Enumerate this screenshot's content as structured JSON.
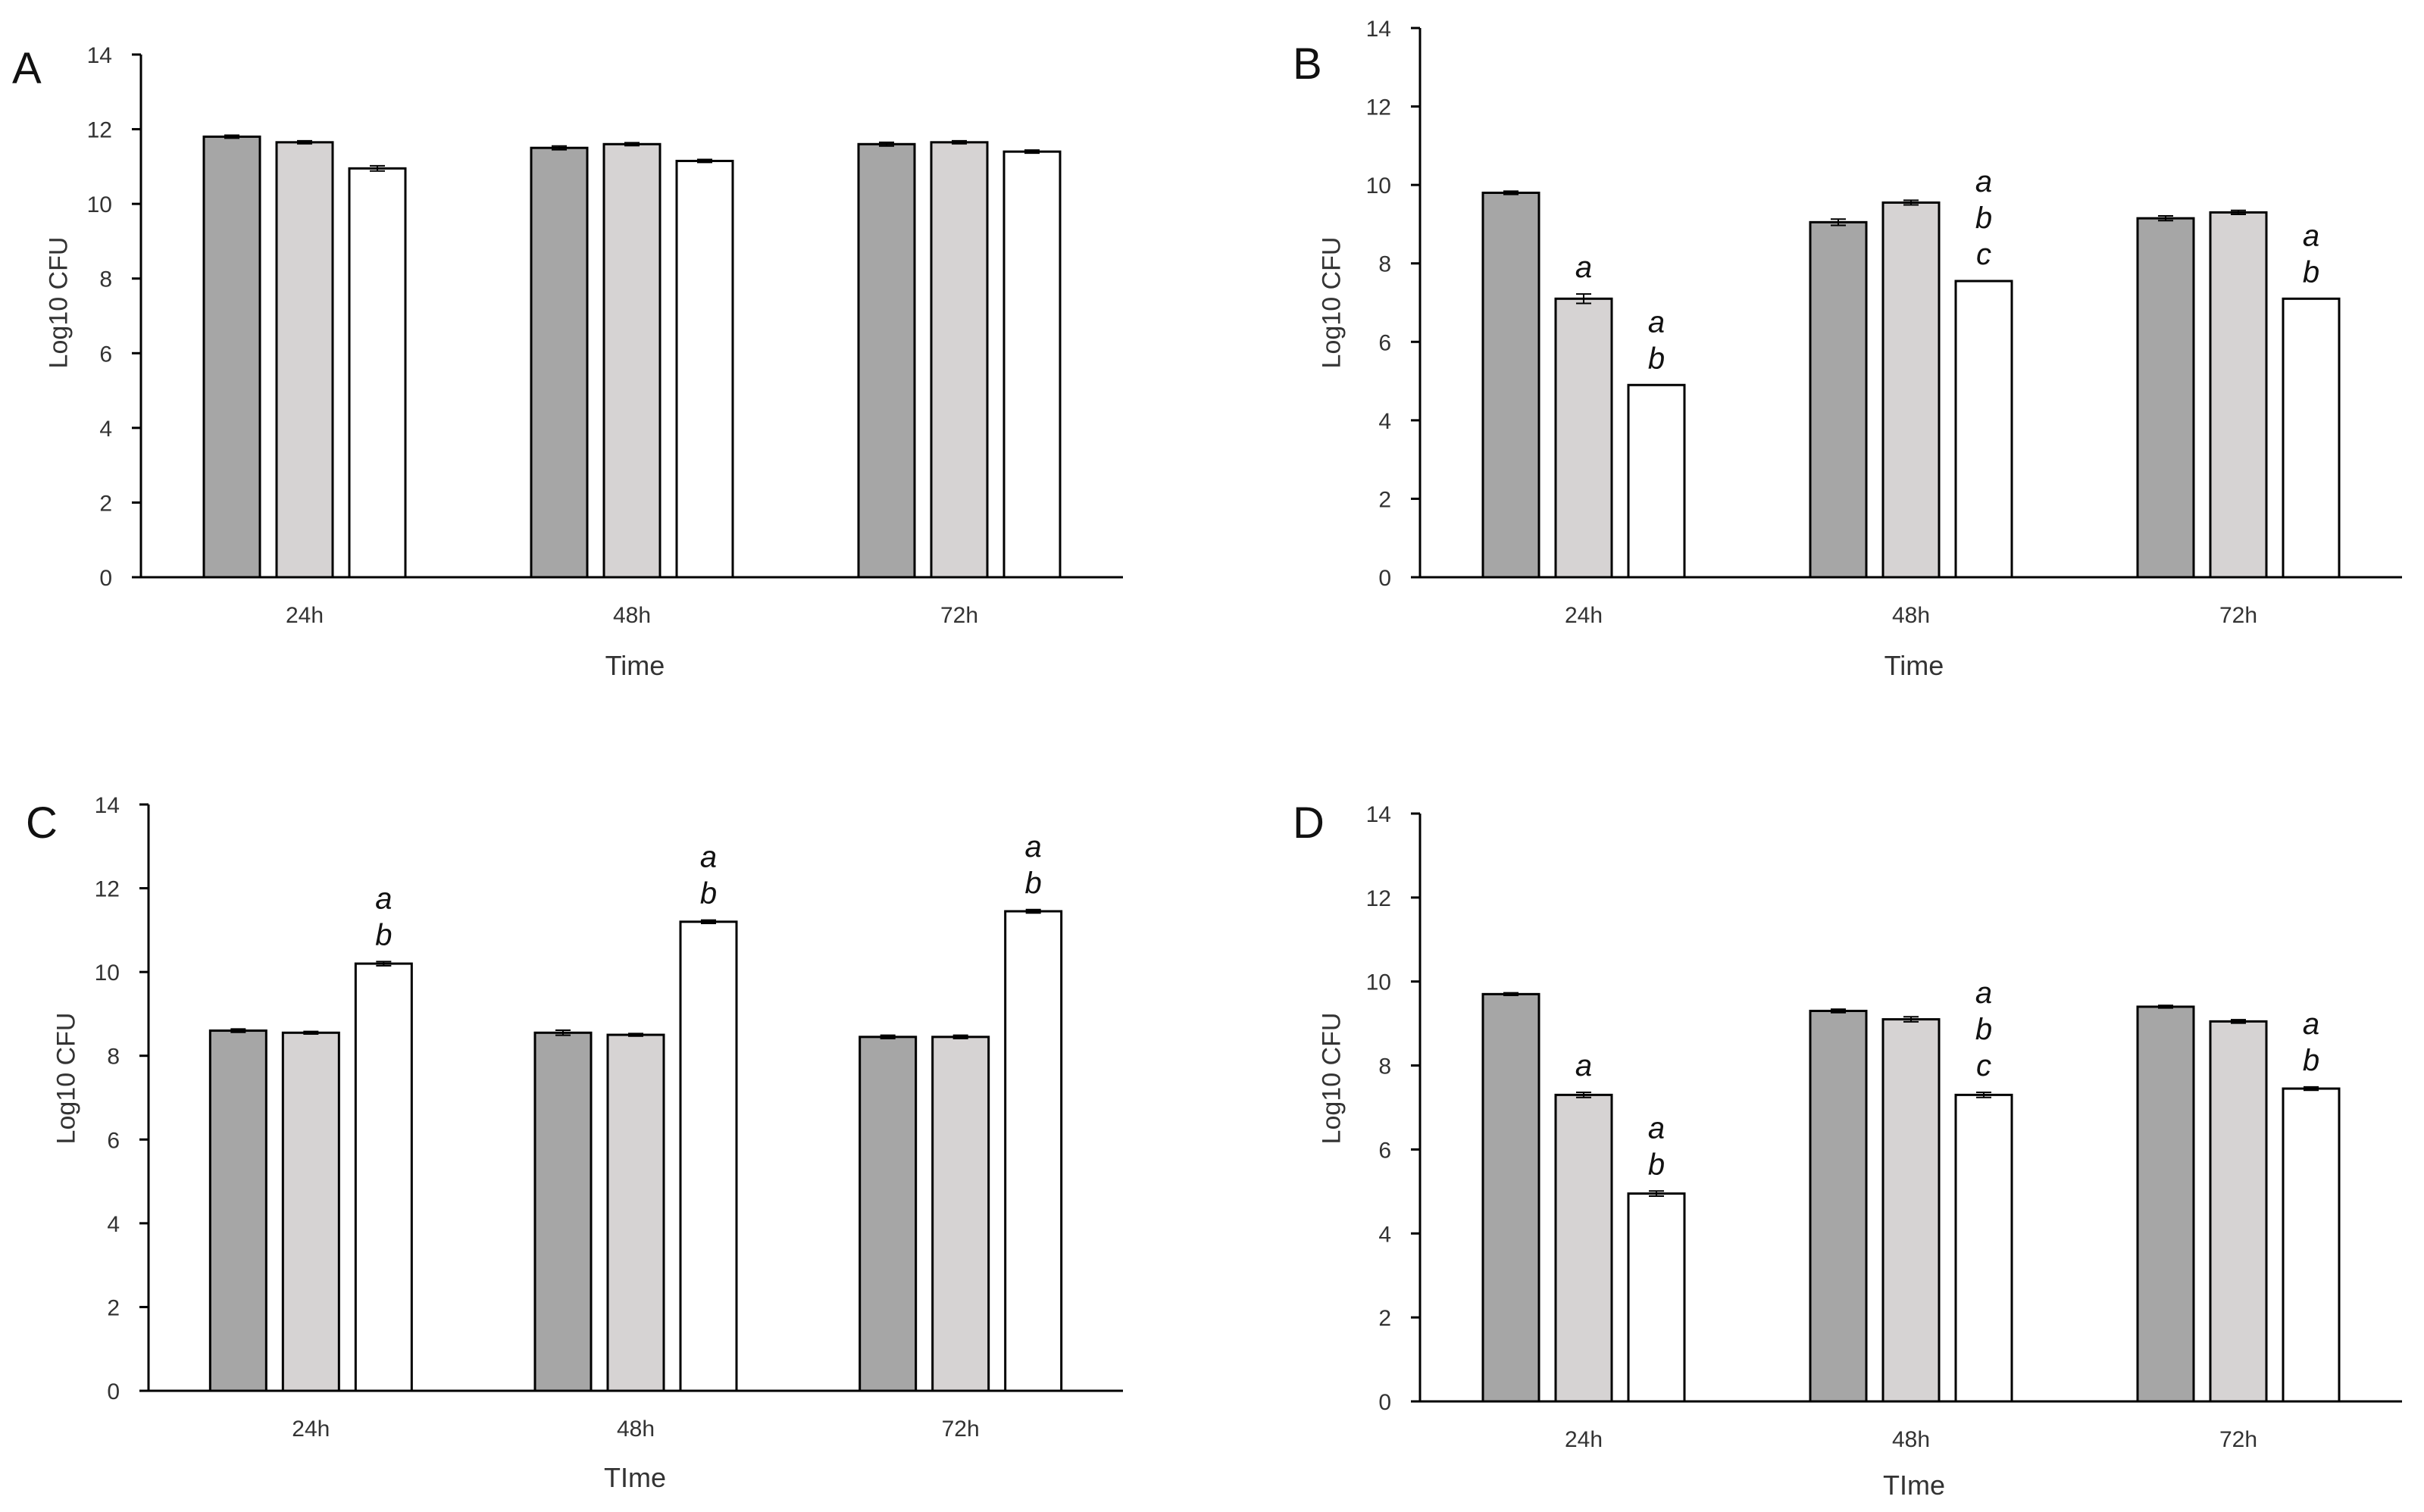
{
  "colors": {
    "series1": "#a6a6a6",
    "series2": "#d6d3d3",
    "series3": "#ffffff",
    "stroke": "#000000",
    "text": "#333333"
  },
  "chart_data": [
    {
      "panel": "A",
      "type": "bar",
      "categories": [
        "24h",
        "48h",
        "72h"
      ],
      "series": [
        {
          "name": "series1",
          "values": [
            11.8,
            11.5,
            11.6
          ],
          "errors": [
            0.04,
            0.05,
            0.05
          ]
        },
        {
          "name": "series2",
          "values": [
            11.65,
            11.6,
            11.65
          ],
          "errors": [
            0.04,
            0.04,
            0.04
          ]
        },
        {
          "name": "series3",
          "values": [
            10.95,
            11.15,
            11.4
          ],
          "errors": [
            0.07,
            0.04,
            0.04
          ]
        }
      ],
      "annotations": [
        [
          [],
          [],
          []
        ],
        [
          [],
          [],
          []
        ],
        [
          [],
          [],
          []
        ]
      ],
      "xlabel": "Time",
      "ylabel": "Log10 CFU",
      "ylim": [
        0,
        14
      ],
      "yticks": [
        "0",
        "2",
        "4",
        "6",
        "8",
        "10",
        "12",
        "14"
      ]
    },
    {
      "panel": "B",
      "type": "bar",
      "categories": [
        "24h",
        "48h",
        "72h"
      ],
      "series": [
        {
          "name": "series1",
          "values": [
            9.8,
            9.05,
            9.15
          ],
          "errors": [
            0.04,
            0.08,
            0.06
          ]
        },
        {
          "name": "series2",
          "values": [
            7.1,
            9.55,
            9.3
          ],
          "errors": [
            0.12,
            0.06,
            0.05
          ]
        },
        {
          "name": "series3",
          "values": [
            4.9,
            7.55,
            7.1
          ],
          "errors": [
            0,
            0,
            0
          ]
        }
      ],
      "annotations": [
        [
          [],
          [
            "a"
          ],
          [
            "a",
            "b"
          ]
        ],
        [
          [],
          [],
          [
            "a",
            "b",
            "c"
          ]
        ],
        [
          [],
          [],
          [
            "a",
            "b"
          ]
        ]
      ],
      "xlabel": "Time",
      "ylabel": "Log10 CFU",
      "ylim": [
        0,
        14
      ],
      "yticks": [
        "0",
        "2",
        "4",
        "6",
        "8",
        "10",
        "12",
        "14"
      ]
    },
    {
      "panel": "C",
      "type": "bar",
      "categories": [
        "24h",
        "48h",
        "72h"
      ],
      "series": [
        {
          "name": "series1",
          "values": [
            8.6,
            8.55,
            8.45
          ],
          "errors": [
            0.04,
            0.06,
            0.04
          ]
        },
        {
          "name": "series2",
          "values": [
            8.55,
            8.5,
            8.45
          ],
          "errors": [
            0.03,
            0.03,
            0.04
          ]
        },
        {
          "name": "series3",
          "values": [
            10.2,
            11.2,
            11.45
          ],
          "errors": [
            0.05,
            0.04,
            0.04
          ]
        }
      ],
      "annotations": [
        [
          [],
          [],
          [
            "a",
            "b"
          ]
        ],
        [
          [],
          [],
          [
            "a",
            "b"
          ]
        ],
        [
          [],
          [],
          [
            "a",
            "b"
          ]
        ]
      ],
      "xlabel": "TIme",
      "ylabel": "Log10 CFU",
      "ylim": [
        0,
        14
      ],
      "yticks": [
        "0",
        "2",
        "4",
        "6",
        "8",
        "10",
        "12",
        "14"
      ]
    },
    {
      "panel": "D",
      "type": "bar",
      "categories": [
        "24h",
        "48h",
        "72h"
      ],
      "series": [
        {
          "name": "series1",
          "values": [
            9.7,
            9.3,
            9.4
          ],
          "errors": [
            0.03,
            0.04,
            0.03
          ]
        },
        {
          "name": "series2",
          "values": [
            7.3,
            9.1,
            9.05
          ],
          "errors": [
            0.06,
            0.06,
            0.04
          ]
        },
        {
          "name": "series3",
          "values": [
            4.95,
            7.3,
            7.45
          ],
          "errors": [
            0.06,
            0.06,
            0.04
          ]
        }
      ],
      "annotations": [
        [
          [],
          [
            "a"
          ],
          [
            "a",
            "b"
          ]
        ],
        [
          [],
          [],
          [
            "a",
            "b",
            "c"
          ]
        ],
        [
          [],
          [],
          [
            "a",
            "b"
          ]
        ]
      ],
      "xlabel": "TIme",
      "ylabel": "Log10 CFU",
      "ylim": [
        0,
        14
      ],
      "yticks": [
        "0",
        "2",
        "4",
        "6",
        "8",
        "10",
        "12",
        "14"
      ]
    }
  ]
}
